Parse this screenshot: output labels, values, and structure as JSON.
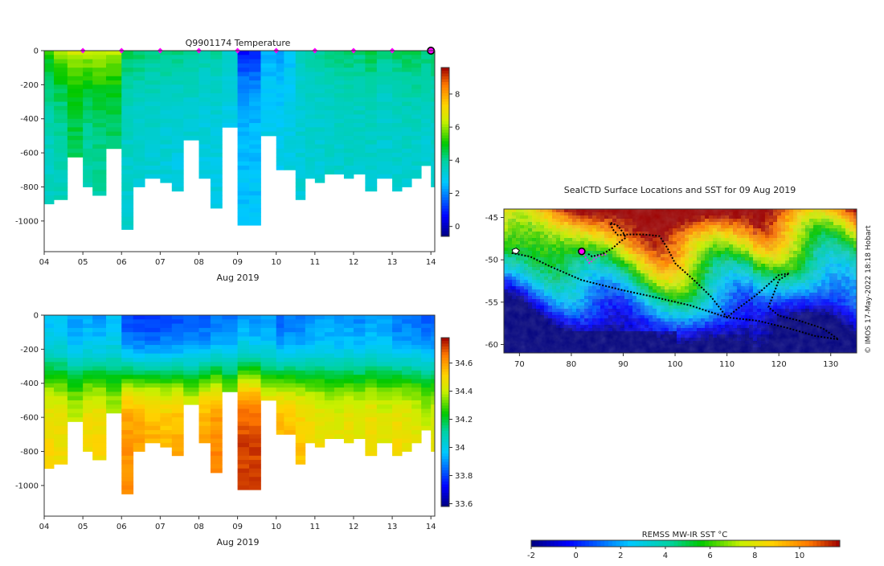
{
  "chart_data": [
    {
      "id": "temperature",
      "type": "heatmap",
      "title": "Q9901174  Temperature",
      "xlabel": "Aug 2019",
      "ylabel": "",
      "xlim": [
        4,
        14.1
      ],
      "ylim": [
        0,
        -1180
      ],
      "x_ticks": [
        "04",
        "05",
        "06",
        "07",
        "08",
        "09",
        "10",
        "11",
        "12",
        "13",
        "14"
      ],
      "y_ticks": [
        "0",
        "-200",
        "-400",
        "-600",
        "-800",
        "-1000"
      ],
      "colorbar_ticks": [
        "0",
        "2",
        "4",
        "6",
        "8"
      ],
      "colorbar_range": [
        -0.6,
        9.6
      ],
      "marker_days": [
        5,
        6,
        7,
        8,
        9,
        10,
        11,
        12,
        13,
        14
      ],
      "profiles": [
        {
          "day": 4.0,
          "max_depth": 880,
          "surface": 5.2,
          "deep": 3.4
        },
        {
          "day": 4.25,
          "max_depth": 870,
          "surface": 6.0,
          "deep": 3.5
        },
        {
          "day": 4.6,
          "max_depth": 610,
          "surface": 6.4,
          "deep": 4.2
        },
        {
          "day": 5.0,
          "max_depth": 795,
          "surface": 6.3,
          "deep": 3.7
        },
        {
          "day": 5.25,
          "max_depth": 850,
          "surface": 6.5,
          "deep": 3.8
        },
        {
          "day": 5.6,
          "max_depth": 570,
          "surface": 6.2,
          "deep": 4.0
        },
        {
          "day": 6.0,
          "max_depth": 1035,
          "surface": 4.6,
          "deep": 3.3
        },
        {
          "day": 6.3,
          "max_depth": 800,
          "surface": 4.4,
          "deep": 3.2
        },
        {
          "day": 6.6,
          "max_depth": 730,
          "surface": 4.2,
          "deep": 3.2
        },
        {
          "day": 7.0,
          "max_depth": 770,
          "surface": 4.3,
          "deep": 3.1
        },
        {
          "day": 7.3,
          "max_depth": 810,
          "surface": 4.2,
          "deep": 3.0
        },
        {
          "day": 7.6,
          "max_depth": 520,
          "surface": 4.0,
          "deep": 3.1
        },
        {
          "day": 8.0,
          "max_depth": 750,
          "surface": 3.9,
          "deep": 3.0
        },
        {
          "day": 8.3,
          "max_depth": 915,
          "surface": 4.0,
          "deep": 3.0
        },
        {
          "day": 8.6,
          "max_depth": 450,
          "surface": 3.4,
          "deep": 2.9
        },
        {
          "day": 9.0,
          "max_depth": 1005,
          "surface": 1.4,
          "deep": 2.7
        },
        {
          "day": 9.3,
          "max_depth": 1005,
          "surface": 1.6,
          "deep": 2.7
        },
        {
          "day": 9.6,
          "max_depth": 500,
          "surface": 2.4,
          "deep": 3.0
        },
        {
          "day": 10.0,
          "max_depth": 695,
          "surface": 2.2,
          "deep": 3.0
        },
        {
          "day": 10.2,
          "max_depth": 690,
          "surface": 2.6,
          "deep": 3.1
        },
        {
          "day": 10.5,
          "max_depth": 855,
          "surface": 3.6,
          "deep": 3.2
        },
        {
          "day": 10.75,
          "max_depth": 740,
          "surface": 3.9,
          "deep": 3.2
        },
        {
          "day": 11.0,
          "max_depth": 760,
          "surface": 4.0,
          "deep": 3.2
        },
        {
          "day": 11.25,
          "max_depth": 720,
          "surface": 4.1,
          "deep": 3.3
        },
        {
          "day": 11.5,
          "max_depth": 710,
          "surface": 4.2,
          "deep": 3.3
        },
        {
          "day": 11.75,
          "max_depth": 745,
          "surface": 4.4,
          "deep": 3.3
        },
        {
          "day": 12.0,
          "max_depth": 720,
          "surface": 4.3,
          "deep": 3.3
        },
        {
          "day": 12.3,
          "max_depth": 815,
          "surface": 4.6,
          "deep": 3.3
        },
        {
          "day": 12.6,
          "max_depth": 750,
          "surface": 4.2,
          "deep": 3.2
        },
        {
          "day": 13.0,
          "max_depth": 825,
          "surface": 4.4,
          "deep": 3.3
        },
        {
          "day": 13.25,
          "max_depth": 780,
          "surface": 4.5,
          "deep": 3.3
        },
        {
          "day": 13.5,
          "max_depth": 745,
          "surface": 4.6,
          "deep": 3.3
        },
        {
          "day": 13.75,
          "max_depth": 675,
          "surface": 4.3,
          "deep": 3.2
        },
        {
          "day": 14.0,
          "max_depth": 780,
          "surface": 4.5,
          "deep": 3.3
        }
      ]
    },
    {
      "id": "salinity",
      "type": "heatmap",
      "title": "",
      "xlabel": "Aug 2019",
      "ylabel": "",
      "xlim": [
        4,
        14.1
      ],
      "ylim": [
        0,
        -1180
      ],
      "x_ticks": [
        "04",
        "05",
        "06",
        "07",
        "08",
        "09",
        "10",
        "11",
        "12",
        "13",
        "14"
      ],
      "y_ticks": [
        "0",
        "-200",
        "-400",
        "-600",
        "-800",
        "-1000"
      ],
      "colorbar_ticks": [
        "33.6",
        "33.8",
        "34",
        "34.2",
        "34.4",
        "34.6"
      ],
      "colorbar_range": [
        33.58,
        34.78
      ],
      "profiles": [
        {
          "day": 4.0,
          "max_depth": 880,
          "surface": 33.95,
          "deep": 34.5
        },
        {
          "day": 4.25,
          "max_depth": 870,
          "surface": 33.95,
          "deep": 34.48
        },
        {
          "day": 4.6,
          "max_depth": 610,
          "surface": 33.9,
          "deep": 34.42
        },
        {
          "day": 5.0,
          "max_depth": 795,
          "surface": 33.92,
          "deep": 34.5
        },
        {
          "day": 5.25,
          "max_depth": 850,
          "surface": 33.9,
          "deep": 34.5
        },
        {
          "day": 5.6,
          "max_depth": 570,
          "surface": 33.95,
          "deep": 34.42
        },
        {
          "day": 6.0,
          "max_depth": 1035,
          "surface": 33.8,
          "deep": 34.62
        },
        {
          "day": 6.3,
          "max_depth": 800,
          "surface": 33.78,
          "deep": 34.6
        },
        {
          "day": 6.6,
          "max_depth": 730,
          "surface": 33.78,
          "deep": 34.58
        },
        {
          "day": 7.0,
          "max_depth": 770,
          "surface": 33.8,
          "deep": 34.56
        },
        {
          "day": 7.3,
          "max_depth": 810,
          "surface": 33.8,
          "deep": 34.58
        },
        {
          "day": 7.6,
          "max_depth": 520,
          "surface": 33.82,
          "deep": 34.5
        },
        {
          "day": 8.0,
          "max_depth": 750,
          "surface": 33.82,
          "deep": 34.6
        },
        {
          "day": 8.3,
          "max_depth": 915,
          "surface": 33.85,
          "deep": 34.64
        },
        {
          "day": 8.6,
          "max_depth": 450,
          "surface": 33.85,
          "deep": 34.5
        },
        {
          "day": 9.0,
          "max_depth": 1005,
          "surface": 33.9,
          "deep": 34.72
        },
        {
          "day": 9.3,
          "max_depth": 1005,
          "surface": 33.88,
          "deep": 34.72
        },
        {
          "day": 9.6,
          "max_depth": 500,
          "surface": 33.9,
          "deep": 34.55
        },
        {
          "day": 10.0,
          "max_depth": 695,
          "surface": 33.82,
          "deep": 34.58
        },
        {
          "day": 10.2,
          "max_depth": 690,
          "surface": 33.85,
          "deep": 34.56
        },
        {
          "day": 10.5,
          "max_depth": 855,
          "surface": 33.85,
          "deep": 34.54
        },
        {
          "day": 10.75,
          "max_depth": 740,
          "surface": 33.88,
          "deep": 34.5
        },
        {
          "day": 11.0,
          "max_depth": 760,
          "surface": 33.9,
          "deep": 34.48
        },
        {
          "day": 11.25,
          "max_depth": 720,
          "surface": 33.9,
          "deep": 34.46
        },
        {
          "day": 11.5,
          "max_depth": 710,
          "surface": 33.88,
          "deep": 34.46
        },
        {
          "day": 11.75,
          "max_depth": 745,
          "surface": 33.9,
          "deep": 34.48
        },
        {
          "day": 12.0,
          "max_depth": 720,
          "surface": 33.88,
          "deep": 34.46
        },
        {
          "day": 12.3,
          "max_depth": 815,
          "surface": 33.9,
          "deep": 34.5
        },
        {
          "day": 12.6,
          "max_depth": 750,
          "surface": 33.9,
          "deep": 34.46
        },
        {
          "day": 13.0,
          "max_depth": 825,
          "surface": 33.85,
          "deep": 34.5
        },
        {
          "day": 13.25,
          "max_depth": 780,
          "surface": 33.85,
          "deep": 34.48
        },
        {
          "day": 13.5,
          "max_depth": 745,
          "surface": 33.85,
          "deep": 34.46
        },
        {
          "day": 13.75,
          "max_depth": 675,
          "surface": 33.82,
          "deep": 34.42
        },
        {
          "day": 14.0,
          "max_depth": 780,
          "surface": 33.82,
          "deep": 34.46
        }
      ]
    },
    {
      "id": "sst-map",
      "type": "heatmap",
      "title": "SealCTD Surface Locations and SST for 09 Aug 2019",
      "xlabel": "",
      "ylabel": "",
      "xlim": [
        67,
        135
      ],
      "ylim": [
        -61,
        -44
      ],
      "x_ticks": [
        "70",
        "80",
        "90",
        "100",
        "110",
        "120",
        "130"
      ],
      "y_ticks": [
        "-45",
        "-50",
        "-55",
        "-60"
      ],
      "colorbar_label": "REMSS MW-IR SST °C",
      "colorbar_ticks": [
        "-2",
        "0",
        "2",
        "4",
        "6",
        "8",
        "10"
      ],
      "colorbar_range": [
        -2,
        11.8
      ],
      "credit": "© IMOS 17-May-2022 18:18 Hobart",
      "track": [
        [
          68.5,
          -49.2
        ],
        [
          72,
          -49.6
        ],
        [
          76,
          -50.8
        ],
        [
          82,
          -52.4
        ],
        [
          90,
          -53.6
        ],
        [
          96,
          -54.4
        ],
        [
          103,
          -55.4
        ],
        [
          107,
          -56.2
        ],
        [
          110,
          -56.8
        ],
        [
          116,
          -57.2
        ],
        [
          122,
          -58.1
        ],
        [
          127,
          -59.0
        ],
        [
          131.5,
          -59.4
        ],
        [
          128.5,
          -58.1
        ],
        [
          124,
          -57.2
        ],
        [
          120,
          -56.6
        ],
        [
          118,
          -55.6
        ],
        [
          120,
          -52.4
        ],
        [
          122,
          -51.6
        ],
        [
          120,
          -51.8
        ],
        [
          116,
          -54.0
        ],
        [
          112,
          -55.8
        ],
        [
          110,
          -56.8
        ],
        [
          107,
          -54.4
        ],
        [
          104,
          -52.6
        ],
        [
          100,
          -50.4
        ],
        [
          98.5,
          -48.6
        ],
        [
          97,
          -47.2
        ],
        [
          94,
          -47.0
        ],
        [
          91,
          -47.0
        ],
        [
          89,
          -47.1
        ],
        [
          88,
          -46.4
        ],
        [
          87.5,
          -45.6
        ],
        [
          89,
          -46.0
        ],
        [
          90,
          -46.8
        ],
        [
          90.5,
          -47.4
        ],
        [
          89.5,
          -47.8
        ],
        [
          88,
          -48.6
        ],
        [
          86,
          -49.3
        ],
        [
          84,
          -49.6
        ],
        [
          83,
          -49.2
        ]
      ],
      "recent_track": [
        [
          82,
          -49.0
        ],
        [
          83.5,
          -50.4
        ],
        [
          85,
          -49.6
        ],
        [
          87,
          -49.3
        ]
      ],
      "current_position": [
        82,
        -49.0
      ]
    }
  ],
  "colors": {
    "marker": "#ff00ff",
    "track": "#000000",
    "recent_track": "#e030e0"
  }
}
